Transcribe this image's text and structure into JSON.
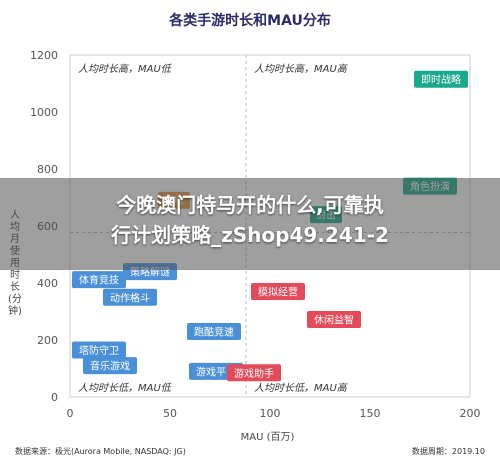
{
  "chart_data": {
    "type": "scatter",
    "title": "各类手游时长和MAU分布",
    "xlabel": "MAU (百万)",
    "ylabel": "人均月使用时长(分钟)",
    "xlim": [
      0,
      200
    ],
    "ylim": [
      0,
      1200
    ],
    "xticks": [
      "0",
      "50",
      "100",
      "150",
      "200"
    ],
    "yticks": [
      "0",
      "200",
      "400",
      "600",
      "800",
      "1000",
      "1200"
    ],
    "divider_x": 88,
    "divider_y": 577,
    "quadrant_labels": {
      "top_left": "人均时长高，MAU低",
      "top_right": "人均时长高，MAU高",
      "bottom_left": "人均时长低，MAU低",
      "bottom_right": "人均时长低，MAU高"
    },
    "points": [
      {
        "label": "即时战略",
        "x": 190,
        "y": 1115,
        "color": "#1aa98c"
      },
      {
        "label": "体育竞技",
        "x": 7,
        "y": 412,
        "color": "#4a90d9"
      },
      {
        "label": "策略解谜",
        "x": 40,
        "y": 440,
        "color": "#4a90d9"
      },
      {
        "label": "动作格斗",
        "x": 30,
        "y": 350,
        "color": "#4a90d9"
      },
      {
        "label": "跑酷竞速",
        "x": 72,
        "y": 230,
        "color": "#4a90d9"
      },
      {
        "label": "塔防守卫",
        "x": 12,
        "y": 165,
        "color": "#4a90d9"
      },
      {
        "label": "音乐游戏",
        "x": 20,
        "y": 110,
        "color": "#4a90d9"
      },
      {
        "label": "游戏平台",
        "x": 73,
        "y": 90,
        "color": "#4a90d9"
      },
      {
        "label": "游戏助手",
        "x": 92,
        "y": 85,
        "color": "#e24b5a"
      },
      {
        "label": "模拟经营",
        "x": 104,
        "y": 370,
        "color": "#e24b5a"
      },
      {
        "label": "休闲益智",
        "x": 132,
        "y": 272,
        "color": "#e24b5a"
      },
      {
        "label": "角色扮演",
        "x": 180,
        "y": 740,
        "color": "#1aa98c"
      },
      {
        "label": "棋牌",
        "x": 52,
        "y": 690,
        "color": "#e8923a"
      },
      {
        "label": "射击",
        "x": 128,
        "y": 640,
        "color": "#1aa98c"
      }
    ],
    "grid": false
  },
  "footer": {
    "source": "数据来源：极光(Aurora Mobile, NASDAQ: JG)",
    "period": "数据周期：2019.10"
  },
  "overlay": {
    "line1": "今晚澳门特马开的什么,可靠执",
    "line2": "行计划策略_zShop49.241-2"
  }
}
